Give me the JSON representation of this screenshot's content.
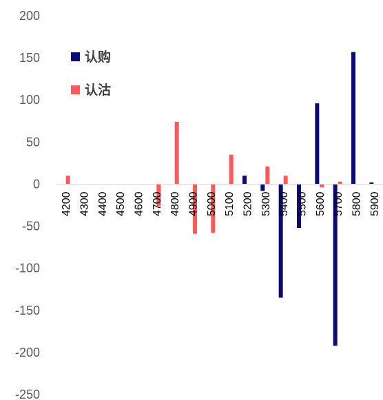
{
  "chart_data": {
    "type": "bar",
    "categories": [
      "4200",
      "4300",
      "4400",
      "4500",
      "4600",
      "4700",
      "4800",
      "4900",
      "5000",
      "5100",
      "5200",
      "5300",
      "5400",
      "5500",
      "5600",
      "5700",
      "5800",
      "5900"
    ],
    "series": [
      {
        "name": "认购",
        "color": "#0A0A7A",
        "values": [
          0,
          0,
          0,
          0,
          0,
          0,
          0,
          0,
          0,
          0,
          10,
          -8,
          -135,
          -52,
          96,
          -192,
          157,
          2
        ]
      },
      {
        "name": "认沽",
        "color": "#FF5A5A",
        "values": [
          10,
          0,
          0,
          0,
          0,
          -26,
          74,
          -59,
          -58,
          35,
          0,
          21,
          10,
          0,
          -4,
          3,
          0,
          0
        ]
      }
    ],
    "ylim": [
      -250,
      200
    ],
    "yticks": [
      "200",
      "150",
      "100",
      "50",
      "0",
      "-50",
      "-100",
      "-150",
      "-200",
      "-250"
    ],
    "ytick_values": [
      200,
      150,
      100,
      50,
      0,
      -50,
      -100,
      -150,
      -200,
      -250
    ],
    "legend_position": "top-left",
    "grid": false
  }
}
